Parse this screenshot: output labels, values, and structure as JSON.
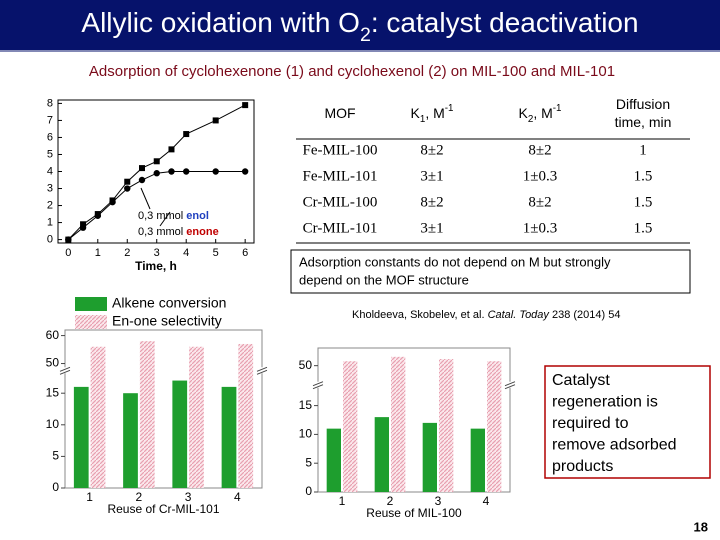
{
  "title": [
    {
      "text": "Allylic oxidation with O"
    },
    {
      "text": "2",
      "style": "sub"
    },
    {
      "text": ": catalyst deactivation"
    }
  ],
  "subtitle": "Adsorption of cyclohexenone (1) and cyclohexenol (2) on MIL-100 and MIL-101",
  "table": {
    "header": [
      [
        [
          {
            "text": "MOF"
          }
        ]
      ],
      [
        [
          {
            "text": "K"
          },
          {
            "text": "1",
            "style": "sub"
          },
          {
            "text": ", M"
          },
          {
            "text": "-1",
            "style": "sup"
          }
        ]
      ],
      [
        [
          {
            "text": "K"
          },
          {
            "text": "2",
            "style": "sub"
          },
          {
            "text": ", M"
          },
          {
            "text": "-1",
            "style": "sup"
          }
        ]
      ],
      [
        [
          {
            "text": "Diffusion"
          }
        ],
        [
          {
            "text": "time, min"
          }
        ]
      ]
    ],
    "rows": [
      [
        "Fe-MIL-100",
        "8±2",
        "8±2",
        "1"
      ],
      [
        "Fe-MIL-101",
        "3±1",
        "1±0.3",
        "1.5"
      ],
      [
        "Cr-MIL-100",
        "8±2",
        "8±2",
        "1.5"
      ],
      [
        "Cr-MIL-101",
        "3±1",
        "1±0.3",
        "1.5"
      ]
    ]
  },
  "note": [
    "Adsorption constants do not depend on M but strongly",
    "depend on the MOF structure"
  ],
  "citation": [
    {
      "text": "Kholdeeva, Skobelev, et al. "
    },
    {
      "text": "Catal. Today",
      "style": "italic"
    },
    {
      "text": " 238 (2014) 54"
    }
  ],
  "callout": [
    "Catalyst",
    "regeneration is",
    "required to",
    "remove adsorbed",
    "products"
  ],
  "page_number": "18",
  "chart_data": [
    {
      "type": "line",
      "x_label": "Time, h",
      "xlim": [
        -0.35,
        6.3
      ],
      "ylim": [
        -0.2,
        8.2
      ],
      "xticks": [
        0,
        1,
        2,
        3,
        4,
        5,
        6
      ],
      "yticks": [
        0,
        1,
        2,
        3,
        4,
        5,
        6,
        7,
        8
      ],
      "annotations": [
        "0,3 mmol ",
        "0,3 mmol "
      ],
      "series": [
        {
          "name": "enol",
          "color": "#000000",
          "label_color": "#1f3fbf",
          "marker": "circle",
          "x": [
            0,
            0.5,
            1,
            1.5,
            2,
            2.5,
            3,
            3.5,
            4,
            5,
            6
          ],
          "values": [
            0,
            0.7,
            1.4,
            2.2,
            3,
            3.5,
            3.9,
            4,
            4,
            4,
            4
          ]
        },
        {
          "name": "enone",
          "color": "#000000",
          "label_color": "#c00000",
          "marker": "square",
          "x": [
            0,
            0.5,
            1,
            1.5,
            2,
            2.5,
            3,
            3.5,
            4,
            5,
            6
          ],
          "values": [
            0,
            0.9,
            1.5,
            2.3,
            3.4,
            4.2,
            4.6,
            5.3,
            6.2,
            7,
            7.9
          ]
        }
      ]
    },
    {
      "type": "bar",
      "x_label": "Reuse of Cr-MIL-101",
      "legend": "top",
      "categories": [
        "1",
        "2",
        "3",
        "4"
      ],
      "ylim": [
        0,
        62
      ],
      "ybreak": [
        18,
        49
      ],
      "yticks": [
        0,
        5,
        10,
        15,
        50,
        60
      ],
      "series": [
        {
          "name": "Alkene conversion",
          "color": "#1e9e2e",
          "values": [
            16,
            15,
            17,
            16
          ]
        },
        {
          "name": "En-one selectivity",
          "color": "#e8a0b0",
          "hatch": true,
          "values": [
            56,
            58,
            56,
            57
          ]
        }
      ]
    },
    {
      "type": "bar",
      "x_label": "Reuse of MIL-100",
      "categories": [
        "1",
        "2",
        "3",
        "4"
      ],
      "ylim": [
        0,
        54
      ],
      "ybreak": [
        18,
        46.5
      ],
      "yticks": [
        0,
        5,
        10,
        15,
        50
      ],
      "series": [
        {
          "color": "#1e9e2e",
          "values": [
            11,
            13,
            12,
            11
          ]
        },
        {
          "color": "#e8a0b0",
          "hatch": true,
          "values": [
            51,
            52,
            51.5,
            51
          ]
        }
      ]
    }
  ]
}
